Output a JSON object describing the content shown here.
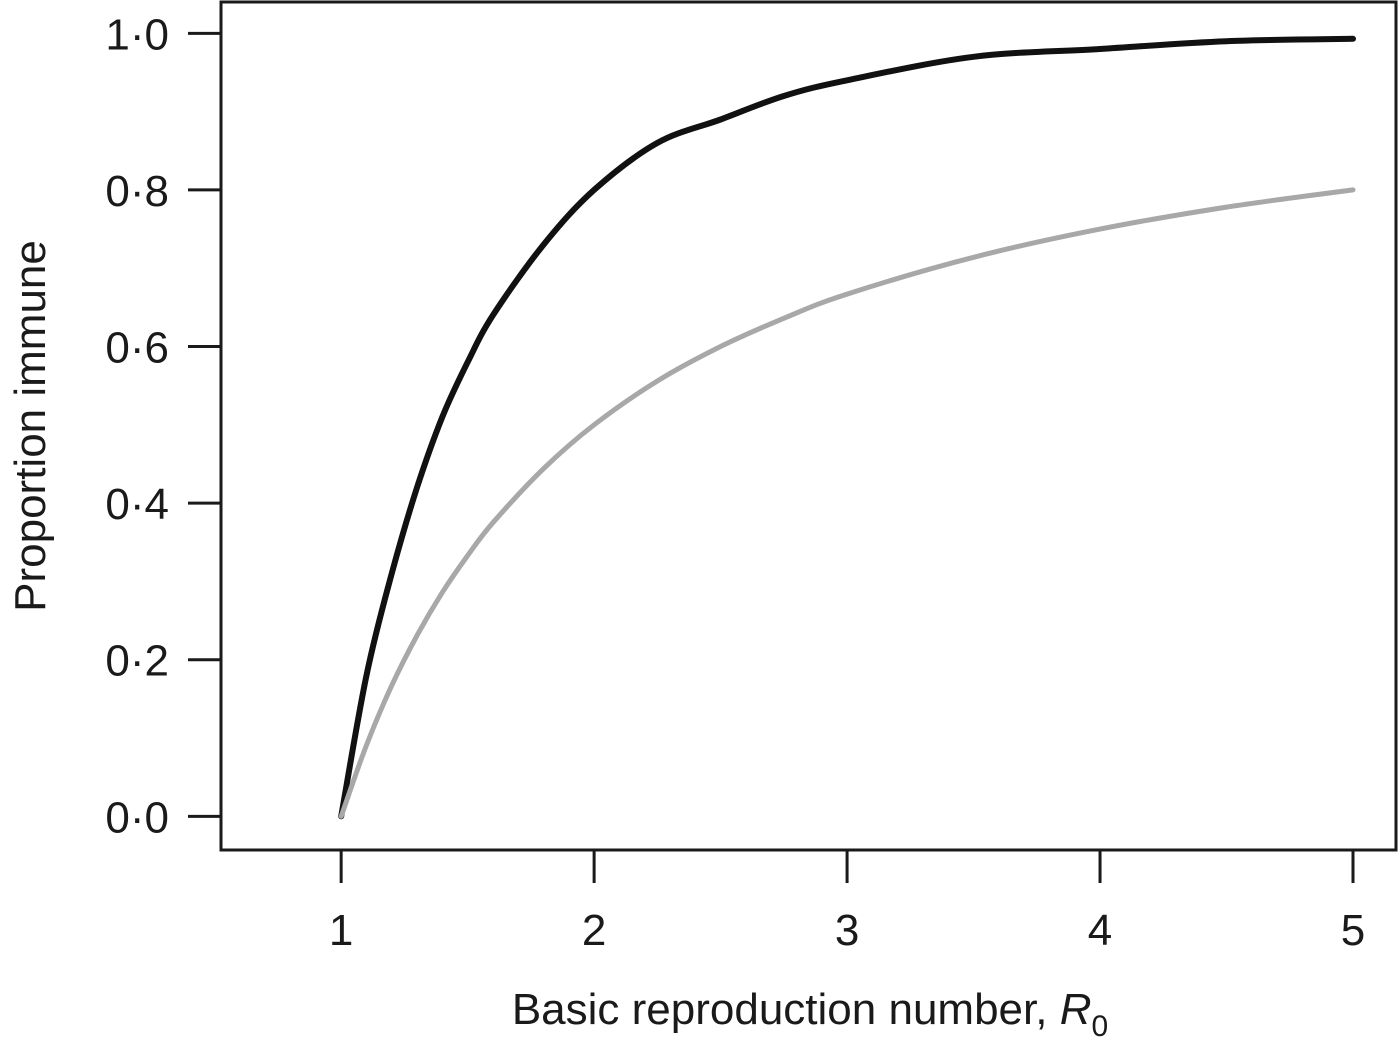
{
  "chart_data": {
    "type": "line",
    "xlabel": "Basic reproduction number,",
    "xlabel_symbol": "R",
    "xlabel_subscript": "0",
    "ylabel": "Proportion immune",
    "xlim": [
      0.525,
      5.17
    ],
    "ylim": [
      -0.043,
      1.04
    ],
    "x_ticks": [
      1,
      2,
      3,
      4,
      5
    ],
    "x_tick_labels": [
      "1",
      "2",
      "3",
      "4",
      "5"
    ],
    "y_ticks": [
      0.0,
      0.2,
      0.4,
      0.6,
      0.8,
      1.0
    ],
    "y_tick_labels": [
      "0·0",
      "0·2",
      "0·4",
      "0·6",
      "0·8",
      "1·0"
    ],
    "grid": false,
    "legend": "none",
    "series": [
      {
        "color": "#111111",
        "x": [
          1.0,
          1.1,
          1.2,
          1.3,
          1.4,
          1.5,
          1.6,
          1.8,
          2.0,
          2.25,
          2.5,
          2.75,
          3.0,
          3.5,
          4.0,
          4.5,
          5.0
        ],
        "y": [
          0.0,
          0.18,
          0.31,
          0.42,
          0.51,
          0.58,
          0.64,
          0.73,
          0.8,
          0.86,
          0.89,
          0.92,
          0.94,
          0.97,
          0.98,
          0.99,
          0.993
        ]
      },
      {
        "color": "#a8a8a8",
        "x": [
          1.0,
          1.1,
          1.2,
          1.3,
          1.4,
          1.5,
          1.6,
          1.8,
          2.0,
          2.25,
          2.5,
          2.75,
          3.0,
          3.5,
          4.0,
          4.5,
          5.0
        ],
        "y": [
          0.0,
          0.091,
          0.167,
          0.231,
          0.286,
          0.333,
          0.375,
          0.444,
          0.5,
          0.556,
          0.6,
          0.636,
          0.667,
          0.714,
          0.75,
          0.778,
          0.8
        ]
      }
    ]
  }
}
